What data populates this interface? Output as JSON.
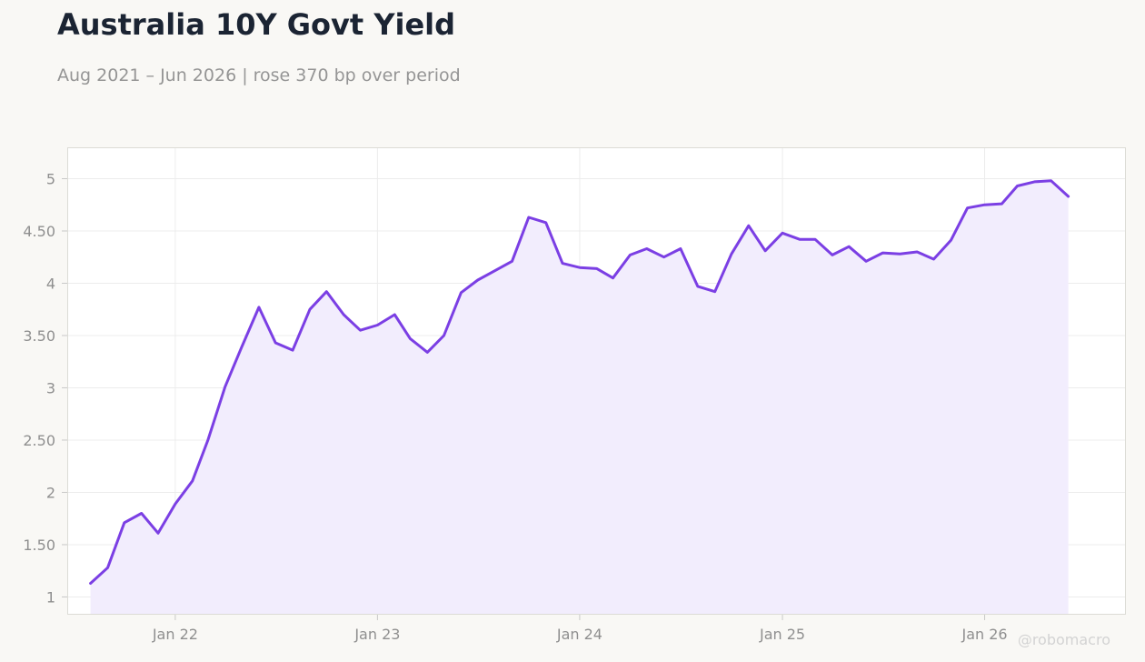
{
  "header": {
    "title": "Australia 10Y Govt Yield",
    "subtitle": "Aug 2021 – Jun 2026 | rose 370 bp over period"
  },
  "watermark": "@robomacro",
  "colors": {
    "line": "#7b3fe4",
    "area": "#f2edfd",
    "grid": "#ececec",
    "plot_bg": "#ffffff",
    "frame": "#dcdcd6",
    "tick_text": "#8f8f8f"
  },
  "chart_data": {
    "type": "area",
    "title": "Australia 10Y Govt Yield",
    "subtitle": "Aug 2021 – Jun 2026 | rose 370 bp over period",
    "xlabel": "",
    "ylabel": "",
    "x_ticks": [
      {
        "label": "Jan 22",
        "date": "2022-01"
      },
      {
        "label": "Jan 23",
        "date": "2023-01"
      },
      {
        "label": "Jan 24",
        "date": "2024-01"
      },
      {
        "label": "Jan 25",
        "date": "2025-01"
      },
      {
        "label": "Jan 26",
        "date": "2026-01"
      }
    ],
    "y_ticks": [
      {
        "label": "1",
        "value": 1
      },
      {
        "label": "1.50",
        "value": 1.5
      },
      {
        "label": "2",
        "value": 2
      },
      {
        "label": "2.50",
        "value": 2.5
      },
      {
        "label": "3",
        "value": 3
      },
      {
        "label": "3.50",
        "value": 3.5
      },
      {
        "label": "4",
        "value": 4
      },
      {
        "label": "4.50",
        "value": 4.5
      },
      {
        "label": "5",
        "value": 5
      }
    ],
    "xlim": [
      "2021-06-20",
      "2026-09-13"
    ],
    "ylim": [
      0.83,
      5.3
    ],
    "grid": true,
    "legend": "none",
    "series": [
      {
        "x": [
          "2021-08",
          "2021-09",
          "2021-10",
          "2021-11",
          "2021-12",
          "2022-01",
          "2022-02",
          "2022-03",
          "2022-04",
          "2022-05",
          "2022-06",
          "2022-07",
          "2022-08",
          "2022-09",
          "2022-10",
          "2022-11",
          "2022-12",
          "2023-01",
          "2023-02",
          "2023-03",
          "2023-04",
          "2023-05",
          "2023-06",
          "2023-07",
          "2023-08",
          "2023-09",
          "2023-10",
          "2023-11",
          "2023-12",
          "2024-01",
          "2024-02",
          "2024-03",
          "2024-04",
          "2024-05",
          "2024-06",
          "2024-07",
          "2024-08",
          "2024-09",
          "2024-10",
          "2024-11",
          "2024-12",
          "2025-01",
          "2025-02",
          "2025-03",
          "2025-04",
          "2025-05",
          "2025-06",
          "2025-07",
          "2025-08",
          "2025-09",
          "2025-10",
          "2025-11",
          "2025-12",
          "2026-01",
          "2026-02",
          "2026-03",
          "2026-04",
          "2026-05",
          "2026-06"
        ],
        "values": [
          1.13,
          1.28,
          1.71,
          1.8,
          1.61,
          1.89,
          2.11,
          2.5,
          3.01,
          3.39,
          3.77,
          3.43,
          3.36,
          3.75,
          3.92,
          3.7,
          3.55,
          3.6,
          3.7,
          3.47,
          3.34,
          3.5,
          3.91,
          4.03,
          4.12,
          4.21,
          4.63,
          4.58,
          4.19,
          4.15,
          4.14,
          4.05,
          4.27,
          4.33,
          4.25,
          4.33,
          3.97,
          3.92,
          4.28,
          4.55,
          4.31,
          4.48,
          4.42,
          4.42,
          4.27,
          4.35,
          4.21,
          4.29,
          4.28,
          4.3,
          4.23,
          4.41,
          4.72,
          4.75,
          4.76,
          4.93,
          4.97,
          4.98,
          4.83
        ]
      }
    ]
  }
}
